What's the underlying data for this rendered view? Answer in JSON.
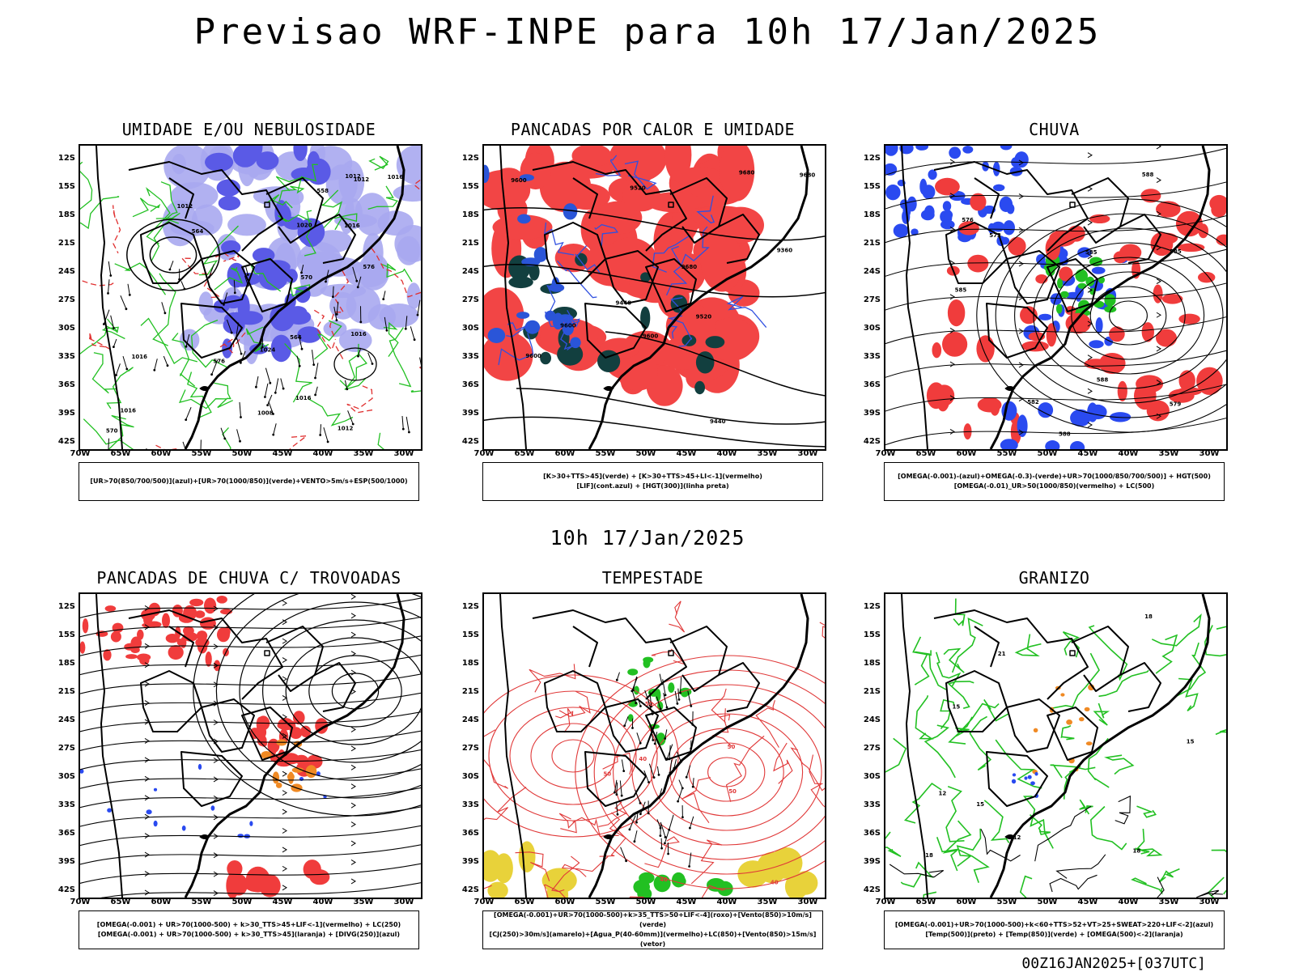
{
  "header": {
    "title": "Previsao WRF-INPE  para 10h 17/Jan/2025"
  },
  "middle": {
    "time": "10h 17/Jan/2025"
  },
  "footer": {
    "run": "00Z16JAN2025+[037UTC]"
  },
  "axes": {
    "lat": [
      "12S",
      "15S",
      "18S",
      "21S",
      "24S",
      "27S",
      "30S",
      "33S",
      "36S",
      "39S",
      "42S"
    ],
    "lon": [
      "70W",
      "65W",
      "60W",
      "55W",
      "50W",
      "45W",
      "40W",
      "35W",
      "30W"
    ]
  },
  "panels": [
    {
      "id": "umidade",
      "title": "UMIDADE E/OU NEBULOSIDADE",
      "legend": [
        "[UR>70(850/700/500)](azul)+[UR>70(1000/850)](verde)+VENTO>5m/s+ESP(500/1000)"
      ],
      "contour_labels": [
        "1012",
        "1012",
        "1016",
        "1016",
        "1016",
        "1008",
        "1012",
        "1012",
        "1016",
        "1016",
        "1024",
        "1020",
        "1016",
        "576",
        "576",
        "570",
        "570",
        "564",
        "564",
        "558"
      ]
    },
    {
      "id": "pancadas",
      "title": "PANCADAS POR CALOR E UMIDADE",
      "legend": [
        "[K>30+TTS>45](verde) + [K>30+TTS>45+LI<-1](vermelho)",
        "[LIF](cont.azul) + [HGT(300)](linha preta)"
      ],
      "contour_labels": [
        "9600",
        "9520",
        "9600",
        "9680",
        "9600",
        "9680",
        "9680",
        "9600",
        "9520",
        "9440",
        "9360",
        "9440"
      ]
    },
    {
      "id": "chuva",
      "title": "CHUVA",
      "legend": [
        "[OMEGA(-0.001)-(azul)+OMEGA(-0.3)-(verde)+UR>70(1000/850/700/500)] + HGT(500)",
        "[OMEGA(-0.01)_UR>50(1000/850)(vermelho) + LC(500)"
      ],
      "contour_labels": [
        "588",
        "585",
        "585",
        "582",
        "579",
        "576",
        "573",
        "588",
        "588",
        "585"
      ]
    },
    {
      "id": "trovoadas",
      "title": "PANCADAS DE CHUVA C/ TROVOADAS",
      "legend": [
        "[OMEGA(-0.001) + UR>70(1000-500) + k>30_TTS>45+LIF<-1](vermelho) + LC(250)",
        "[OMEGA(-0.001) + UR>70(1000-500) + k>30_TTS>45](laranja) + [DIVG(250)](azul)"
      ],
      "contour_labels": []
    },
    {
      "id": "tempestade",
      "title": "TEMPESTADE",
      "legend": [
        "[OMEGA(-0.001)+UR>70(1000-500)+k>35_TTS>50+LIF<-4](roxo)+[Vento(850)>10m/s](verde)",
        "[CJ(250)>30m/s](amarelo)+[Agua_P(40-60mm)](vermelho)+LC(850)+[Vento(850)>15m/s](vetor)"
      ],
      "contour_labels": [
        "50",
        "40",
        "50",
        "40",
        "50",
        "40",
        "50"
      ]
    },
    {
      "id": "granizo",
      "title": "GRANIZO",
      "legend": [
        "[OMEGA(-0.001)+UR>70(1000-500)+k<60+TTS>52+VT>25+SWEAT>220+LIF<-2](azul)",
        "[Temp(500)](preto) + [Temp(850)](verde) + [OMEGA(500)<-2](laranja)"
      ],
      "contour_labels": [
        "18",
        "15",
        "21",
        "18",
        "15",
        "12",
        "15",
        "18",
        "12"
      ]
    }
  ]
}
